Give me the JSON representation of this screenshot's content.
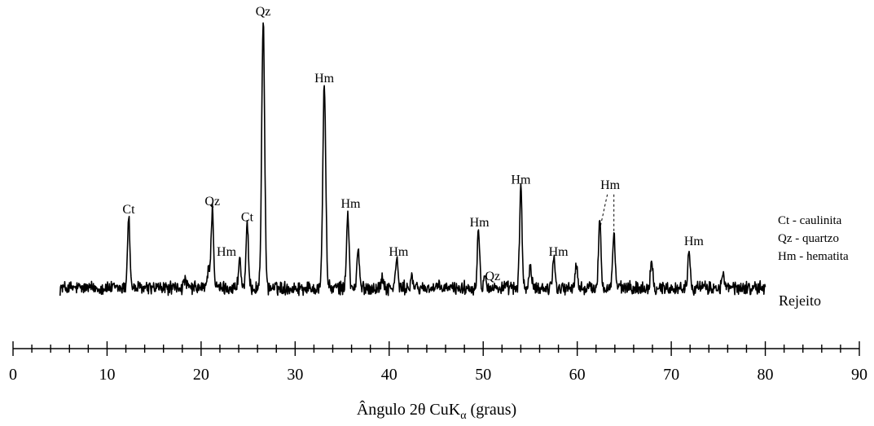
{
  "chart_data": {
    "type": "line",
    "title": "",
    "xlabel": "Ângulo 2θ CuK",
    "xlabel_subscript": "α",
    "xlabel_suffix": " (graus)",
    "ylabel": "",
    "xlim": [
      0,
      90
    ],
    "x_ticks": [
      0,
      10,
      20,
      30,
      40,
      50,
      60,
      70,
      80,
      90
    ],
    "x_tick_labels": [
      "0",
      "10",
      "20",
      "30",
      "40",
      "50",
      "60",
      "70",
      "80",
      "90"
    ],
    "minor_tick_step": 2,
    "series": [
      {
        "name": "Rejeito",
        "x_range": [
          5,
          80
        ],
        "baseline": 5,
        "peaks": [
          {
            "x": 12.3,
            "height": 27
          },
          {
            "x": 18.3,
            "height": 3
          },
          {
            "x": 20.8,
            "height": 8
          },
          {
            "x": 21.2,
            "height": 30
          },
          {
            "x": 24.1,
            "height": 11
          },
          {
            "x": 24.9,
            "height": 23
          },
          {
            "x": 26.6,
            "height": 100
          },
          {
            "x": 33.1,
            "height": 76
          },
          {
            "x": 35.6,
            "height": 29
          },
          {
            "x": 36.7,
            "height": 14
          },
          {
            "x": 39.3,
            "height": 4
          },
          {
            "x": 40.8,
            "height": 11
          },
          {
            "x": 42.4,
            "height": 4
          },
          {
            "x": 49.5,
            "height": 22
          },
          {
            "x": 50.2,
            "height": 6
          },
          {
            "x": 54.0,
            "height": 38
          },
          {
            "x": 55.0,
            "height": 8
          },
          {
            "x": 57.5,
            "height": 12
          },
          {
            "x": 59.9,
            "height": 8
          },
          {
            "x": 62.4,
            "height": 26
          },
          {
            "x": 63.9,
            "height": 21
          },
          {
            "x": 67.9,
            "height": 10
          },
          {
            "x": 71.9,
            "height": 15
          },
          {
            "x": 75.5,
            "height": 5
          }
        ]
      }
    ],
    "annotations": [
      {
        "text": "Ct",
        "x": 12.3,
        "height": 33
      },
      {
        "text": "Qz",
        "x": 21.2,
        "height": 36
      },
      {
        "text": "Hm",
        "x": 22.7,
        "height": 17
      },
      {
        "text": "Ct",
        "x": 24.9,
        "height": 30
      },
      {
        "text": "Qz",
        "x": 26.6,
        "height": 107
      },
      {
        "text": "Hm",
        "x": 33.1,
        "height": 82
      },
      {
        "text": "Hm",
        "x": 35.9,
        "height": 35
      },
      {
        "text": "Hm",
        "x": 41.0,
        "height": 17
      },
      {
        "text": "Hm",
        "x": 49.6,
        "height": 28
      },
      {
        "text": "Qz",
        "x": 51.0,
        "height": 8
      },
      {
        "text": "Hm",
        "x": 54.0,
        "height": 44
      },
      {
        "text": "Hm",
        "x": 58.0,
        "height": 17
      },
      {
        "text": "Hm",
        "x": 63.5,
        "height": 42
      },
      {
        "text": "Hm",
        "x": 72.4,
        "height": 21
      }
    ],
    "leader_lines": [
      {
        "from_x": 63.2,
        "from_height": 40,
        "to_x": 62.4,
        "to_height": 27
      },
      {
        "from_x": 63.9,
        "from_height": 40,
        "to_x": 63.9,
        "to_height": 22
      }
    ],
    "sample_label": "Rejeito",
    "legend": {
      "placement": "right",
      "items": [
        "Ct - caulinita",
        "Qz - quartzo",
        "Hm - hematita"
      ]
    },
    "grid": false
  }
}
